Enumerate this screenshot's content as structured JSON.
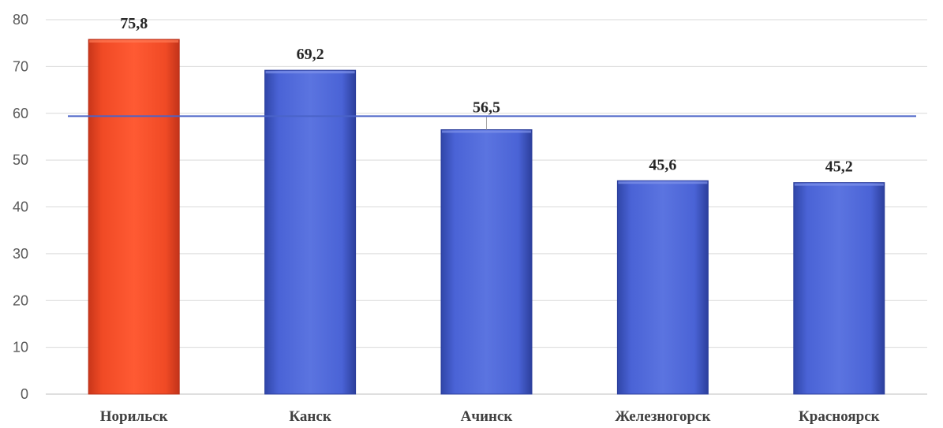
{
  "chart_data": {
    "type": "bar",
    "title": "",
    "xlabel": "",
    "ylabel": "",
    "categories": [
      "Норильск",
      "Канск",
      "Ачинск",
      "Железногорск",
      "Красноярск"
    ],
    "values": [
      75.8,
      69.2,
      56.5,
      45.6,
      45.2
    ],
    "data_labels": [
      "75,8",
      "69,2",
      "56,5",
      "45,6",
      "45,2"
    ],
    "ylim": [
      0,
      80
    ],
    "yticks": [
      0,
      10,
      20,
      30,
      40,
      50,
      60,
      70,
      80
    ],
    "reference_line": 59.4,
    "grid": true,
    "legend": "none",
    "bar_colors": [
      "#f04a25",
      "#4a63d6",
      "#4a63d6",
      "#4a63d6",
      "#4a63d6"
    ],
    "highlight_color": "#f04a25",
    "bar_color": "#4a63d6",
    "reference_line_color": "#4a63d6"
  }
}
